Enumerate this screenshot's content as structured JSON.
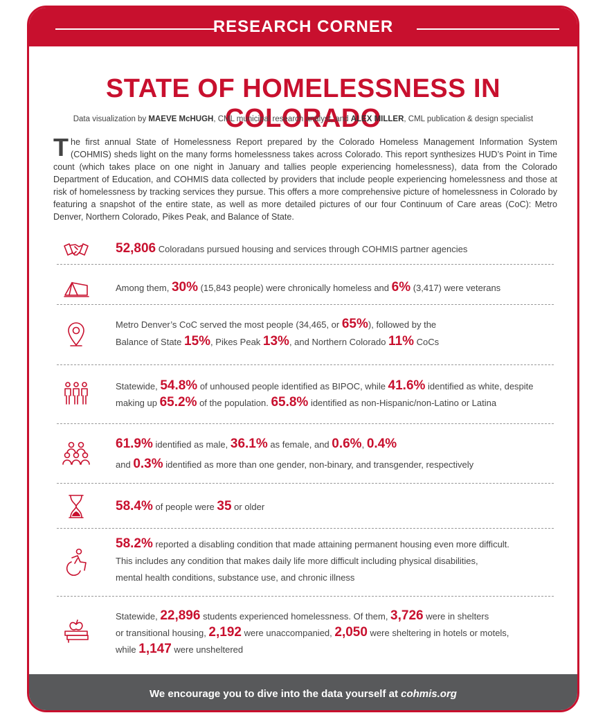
{
  "header": {
    "title": "RESEARCH CORNER"
  },
  "article": {
    "title": "STATE OF HOMELESSNESS IN COLORADO",
    "credit": {
      "prefix": "Data visualization by ",
      "author1": "MAEVE McHUGH",
      "middle": ", CML municipal research analyst, and ",
      "author2": "ALEX MILLER",
      "suffix": ", CML publication & design specialist"
    },
    "intro_dropcap": "T",
    "intro_text": "he first annual State of Homelessness Report prepared by the Colorado Homeless Management Information System (COHMIS) sheds light on the many forms homelessness takes across Colorado. This report synthesizes HUD’s Point in Time count (which takes place on one night in January and tallies people experiencing homelessness), data from the Colorado Department of Education, and COHMIS data collected by providers that include people experiencing homelessness and those at risk of homelessness by tracking services they pursue. This offers a more comprehensive picture of homelessness in Colorado by featuring a snapshot of the entire state, as well as more detailed pictures of our four Continuum of Care areas (CoC): Metro Denver, Northern Colorado, Pikes Peak, and Balance of State."
  },
  "stats": {
    "s1": {
      "icon": "handshake-icon",
      "n1": "52,806",
      "t1": " Coloradans pursued housing and services through COHMIS partner agencies"
    },
    "s2": {
      "icon": "tent-icon",
      "t1": "Among them, ",
      "n1": "30%",
      "t2": " (15,843 people) were chronically homeless and ",
      "n2": "6%",
      "t3": " (3,417) were veterans"
    },
    "s3": {
      "icon": "map-pin-icon",
      "t1": "Metro Denver’s CoC served the most people (34,465, or ",
      "n1": "65%",
      "t2": "), followed by the",
      "t3": "Balance of State ",
      "n2": "15%",
      "t4": ", Pikes Peak ",
      "n3": "13%",
      "t5": ", and Northern Colorado ",
      "n4": "11%",
      "t6": " CoCs"
    },
    "s4": {
      "icon": "people-group-icon",
      "t1": "Statewide, ",
      "n1": "54.8%",
      "t2": " of unhoused people identified as BIPOC, while ",
      "n2": "41.6%",
      "t3": " identified as white, despite",
      "t4": "making up ",
      "n3": "65.2%",
      "t5": " of the population. ",
      "n4": "65.8%",
      "t6": " identified as non-Hispanic/non-Latino or Latina"
    },
    "s5": {
      "icon": "gender-group-icon",
      "n1": "61.9%",
      "t1": " identified as male, ",
      "n2": "36.1%",
      "t2": " as female, and ",
      "n3": "0.6%",
      "t3": ", ",
      "n4": "0.4%",
      "t4": "and ",
      "n5": "0.3%",
      "t5": " identified as more than one gender, non-binary, and transgender, respectively"
    },
    "s6": {
      "icon": "hourglass-icon",
      "n1": "58.4%",
      "t1": " of people were ",
      "n2": "35",
      "t2": " or older"
    },
    "s7": {
      "icon": "accessibility-icon",
      "n1": "58.2%",
      "t1": " reported a disabling condition that made attaining permanent housing even more difficult.",
      "t2": "This includes any condition that makes daily life more difficult including physical disabilities,",
      "t3": "mental health conditions, substance use, and chronic illness"
    },
    "s8": {
      "icon": "books-apple-icon",
      "t1": "Statewide, ",
      "n1": "22,896",
      "t2": " students experienced homelessness. Of them, ",
      "n2": "3,726",
      "t3": " were in shelters",
      "t4": "or transitional housing, ",
      "n3": "2,192",
      "t5": " were unaccompanied, ",
      "n4": "2,050",
      "t6": " were sheltering in hotels or motels,",
      "t7": "while ",
      "n5": "1,147",
      "t8": " were unsheltered"
    }
  },
  "footer": {
    "text": "We encourage you to dive into the data yourself at ",
    "link": "cohmis.org"
  },
  "colors": {
    "accent": "#c8102e",
    "footer_bg": "#58595b"
  }
}
